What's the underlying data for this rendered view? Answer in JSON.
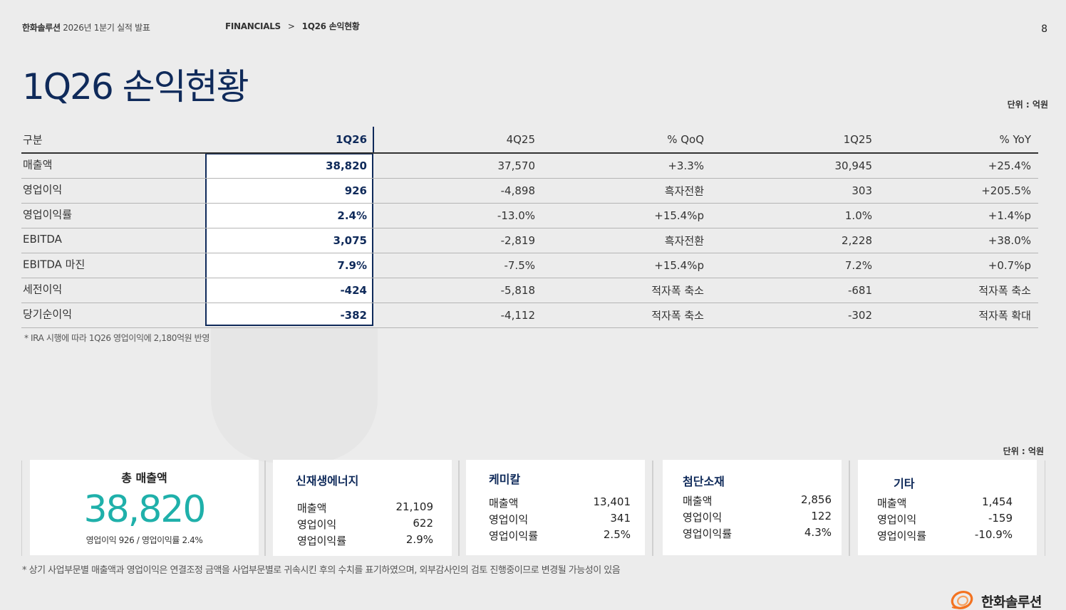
{
  "header": {
    "company": "한화솔루션",
    "report": "2026년 1분기 실적 발표",
    "breadcrumb_section": "FINANCIALS",
    "breadcrumb_sep": ">",
    "breadcrumb_page": "1Q26 손익현황",
    "page_number": "8"
  },
  "title": "1Q26 손익현황",
  "unit_top": "단위 : 억원",
  "table": {
    "headers": [
      "구분",
      "1Q26",
      "4Q25",
      "% QoQ",
      "1Q25",
      "% YoY"
    ],
    "rows": [
      [
        "매출액",
        "38,820",
        "37,570",
        "+3.3%",
        "30,945",
        "+25.4%"
      ],
      [
        "영업이익",
        "926",
        "-4,898",
        "흑자전환",
        "303",
        "+205.5%"
      ],
      [
        "영업이익률",
        "2.4%",
        "-13.0%",
        "+15.4%p",
        "1.0%",
        "+1.4%p"
      ],
      [
        "EBITDA",
        "3,075",
        "-2,819",
        "흑자전환",
        "2,228",
        "+38.0%"
      ],
      [
        "EBITDA 마진",
        "7.9%",
        "-7.5%",
        "+15.4%p",
        "7.2%",
        "+0.7%p"
      ],
      [
        "세전이익",
        "-424",
        "-5,818",
        "적자폭 축소",
        "-681",
        "적자폭 축소"
      ],
      [
        "당기순이익",
        "-382",
        "-4,112",
        "적자폭 축소",
        "-302",
        "적자폭 확대"
      ]
    ]
  },
  "footnote_table": "* IRA 시행에 따라 1Q26 영업이익에 2,180억원 반영",
  "unit_bottom": "단위 : 억원",
  "total": {
    "title": "총 매출액",
    "value": "38,820",
    "sub": "영업이익 926 / 영업이익률 2.4%"
  },
  "segments": [
    {
      "name": "신재생에너지",
      "rows": [
        [
          "매출액",
          "21,109"
        ],
        [
          "영업이익",
          "622"
        ],
        [
          "영업이익률",
          "2.9%"
        ]
      ]
    },
    {
      "name": "케미칼",
      "rows": [
        [
          "매출액",
          "13,401"
        ],
        [
          "영업이익",
          "341"
        ],
        [
          "영업이익률",
          "2.5%"
        ]
      ]
    },
    {
      "name": "첨단소재",
      "rows": [
        [
          "매출액",
          "2,856"
        ],
        [
          "영업이익",
          "122"
        ],
        [
          "영업이익률",
          "4.3%"
        ]
      ]
    },
    {
      "name": "기타",
      "rows": [
        [
          "매출액",
          "1,454"
        ],
        [
          "영업이익",
          "-159"
        ],
        [
          "영업이익률",
          "-10.9%"
        ]
      ]
    }
  ],
  "footnote_bottom": "* 상기 사업부문별 매출액과 영업이익은 연결조정 금액을 사업부문별로 귀속시킨 후의 수치를 표기하였으며, 외부감사인의 검토 진행중이므로 변경될 가능성이 있음",
  "logo_text": "한화솔루션",
  "colors": {
    "navy": "#0f2a5a",
    "teal": "#1fb0aa",
    "brand_orange": "#f37321"
  }
}
